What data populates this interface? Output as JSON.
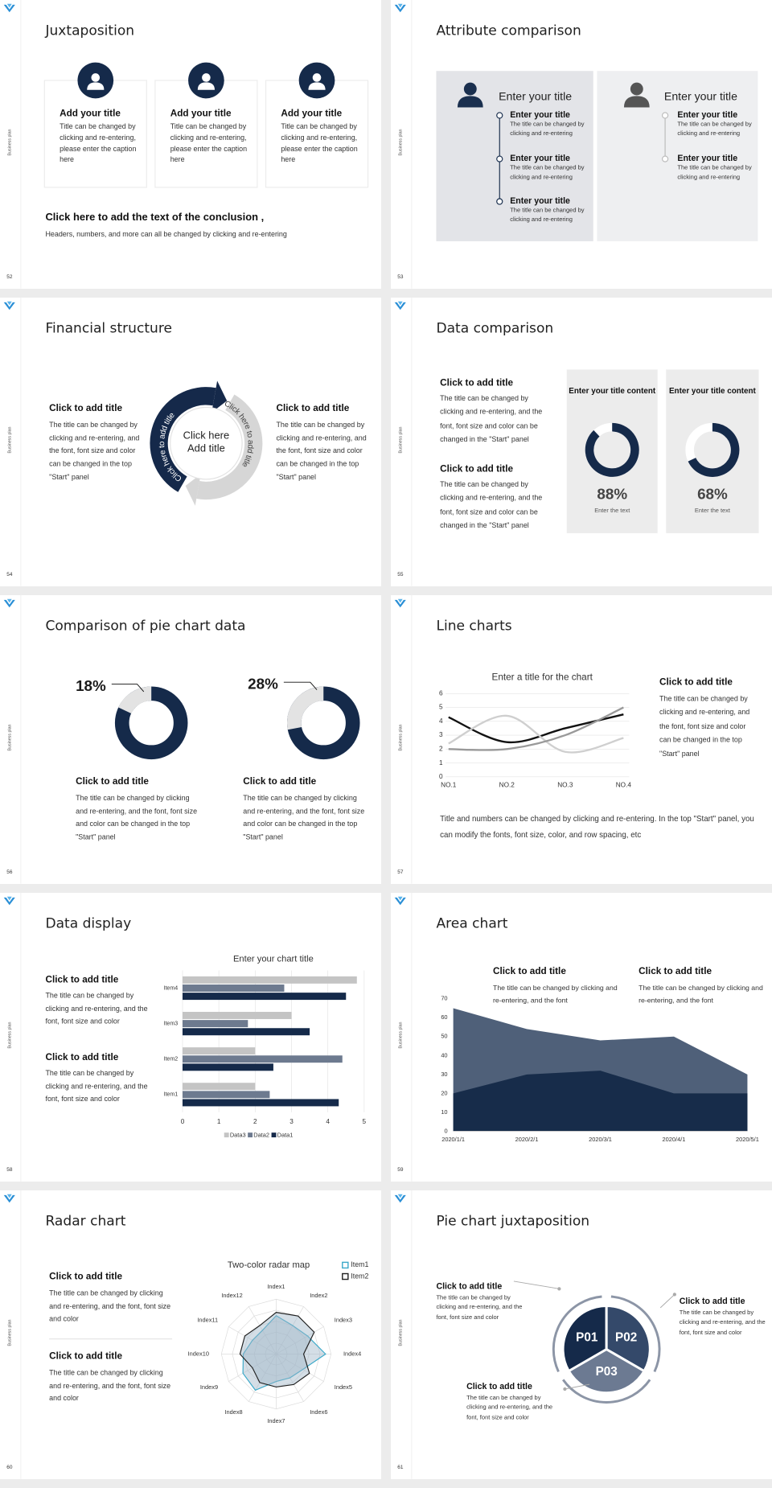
{
  "sidebar_label": "Business plan",
  "slides": [
    {
      "page": 52,
      "title": "Juxtaposition",
      "cards": [
        {
          "title": "Add your title",
          "text": "Title can be changed by clicking and re-entering, please enter the caption here"
        },
        {
          "title": "Add your title",
          "text": "Title can be changed by clicking and re-entering, please enter the caption here"
        },
        {
          "title": "Add your title",
          "text": "Title can be changed by clicking and re-entering, please enter the caption here"
        }
      ],
      "conclusion": {
        "title": "Click here to add the text of the conclusion ,",
        "text": "Headers, numbers, and more can all be changed by clicking and re-entering"
      }
    },
    {
      "page": 53,
      "title": "Attribute comparison",
      "panels": [
        {
          "heading": "Enter your title",
          "items": [
            {
              "title": "Enter your title",
              "text": "The title can be changed by clicking and re-entering"
            },
            {
              "title": "Enter your title",
              "text": "The title can be changed by clicking and re-entering"
            },
            {
              "title": "Enter your title",
              "text": "The title can be changed by clicking and re-entering"
            }
          ]
        },
        {
          "heading": "Enter your title",
          "items": [
            {
              "title": "Enter your title",
              "text": "The title can be changed by clicking and re-entering"
            },
            {
              "title": "Enter your title",
              "text": "The title can be changed by clicking and re-entering"
            }
          ]
        }
      ]
    },
    {
      "page": 54,
      "title": "Financial structure",
      "blocks": [
        {
          "title": "Click to add title",
          "text": "The title can be changed by clicking and re-entering, and the font, font size and color can be changed in the top \"Start\" panel"
        },
        {
          "title": "Click to add title",
          "text": "The title can be changed by clicking and re-entering, and the font, font size and color can be changed in the top \"Start\" panel"
        }
      ],
      "center": "Click here Add title",
      "arc_labels": [
        "Click here to add title",
        "Click here to add title"
      ]
    },
    {
      "page": 55,
      "title": "Data comparison",
      "blocks": [
        {
          "title": "Click to add title",
          "text": "The title can be changed by clicking and re-entering, and the font, font size and color can be changed in the \"Start\" panel"
        },
        {
          "title": "Click to add title",
          "text": "The title can be changed by clicking and re-entering, and the font, font size and color can be changed in the \"Start\" panel"
        }
      ],
      "chart_data": {
        "type": "donut",
        "categories": [
          "Enter your title content",
          "Enter your title content"
        ],
        "values": [
          88,
          68
        ],
        "value_labels": [
          "88%",
          "68%"
        ],
        "captions": [
          "Enter the text",
          "Enter the text"
        ],
        "color": "#152a4a",
        "rest_color": "#ffffff"
      }
    },
    {
      "page": 56,
      "title": "Comparison of pie chart data",
      "blocks": [
        {
          "title": "Click to add title",
          "text": "The title can be changed by clicking and re-entering, and the font, font size and color can be changed in the top \"Start\" panel"
        },
        {
          "title": "Click to add title",
          "text": "The title can be changed by clicking and re-entering, and the font, font size and color can be changed in the top \"Start\" panel"
        }
      ],
      "chart_data": {
        "type": "donut",
        "values": [
          18,
          28
        ],
        "value_labels": [
          "18%",
          "28%"
        ],
        "color": "#e3e3e3",
        "rest_color": "#152a4a"
      }
    },
    {
      "page": 57,
      "title": "Line charts",
      "chart_data": {
        "type": "line",
        "title": "Enter a title for the chart",
        "categories": [
          "NO.1",
          "NO.2",
          "NO.3",
          "NO.4"
        ],
        "series": [
          {
            "color": "#111111",
            "values": [
              4.3,
              2.5,
              3.5,
              4.5
            ]
          },
          {
            "color": "#cfcfcf",
            "values": [
              2.4,
              4.4,
              1.8,
              2.8
            ]
          },
          {
            "color": "#999999",
            "values": [
              2.0,
              2.0,
              3.0,
              5.0
            ]
          }
        ],
        "ylim": [
          0,
          6
        ],
        "yticks": [
          0,
          1,
          2,
          3,
          4,
          5,
          6
        ],
        "grid": true,
        "smooth": true
      },
      "block": {
        "title": "Click to add title",
        "text": "The title can be changed by clicking and re-entering, and the font, font size and color can be changed in the top \"Start\" panel"
      },
      "note": "Title and numbers can be changed by clicking and re-entering. In the top \"Start\" panel, you can modify the fonts, font size, color, and row spacing, etc"
    },
    {
      "page": 58,
      "title": "Data display",
      "blocks": [
        {
          "title": "Click to add title",
          "text": "The title can be changed by clicking and re-entering, and the font, font size and color"
        },
        {
          "title": "Click to add title",
          "text": "The title can be changed by clicking and re-entering, and the font, font size and color"
        }
      ],
      "chart_data": {
        "type": "hbar",
        "title": "Enter your chart title",
        "categories": [
          "Item1",
          "Item2",
          "Item3",
          "Item4"
        ],
        "series": [
          {
            "name": "Data1",
            "color": "#152a4a",
            "values": [
              4.3,
              2.5,
              3.5,
              4.5
            ]
          },
          {
            "name": "Data2",
            "color": "#6d7a8f",
            "values": [
              2.4,
              4.4,
              1.8,
              2.8
            ]
          },
          {
            "name": "Data3",
            "color": "#c4c4c4",
            "values": [
              2.0,
              2.0,
              3.0,
              4.8
            ]
          }
        ],
        "xlim": [
          0,
          5
        ],
        "xticks": [
          0,
          1,
          2,
          3,
          4,
          5
        ],
        "grid": true,
        "legend": "bottom"
      }
    },
    {
      "page": 59,
      "title": "Area chart",
      "blocks": [
        {
          "title": "Click to add title",
          "text": "The title can be changed by clicking and re-entering, and the font"
        },
        {
          "title": "Click to add title",
          "text": "The title can be changed by clicking and re-entering, and the font"
        }
      ],
      "chart_data": {
        "type": "area",
        "x": [
          "2020/1/1",
          "2020/2/1",
          "2020/3/1",
          "2020/4/1",
          "2020/5/1"
        ],
        "series": [
          {
            "color": "#4f6079",
            "values": [
              65,
              54,
              48,
              50,
              30
            ]
          },
          {
            "color": "#172c4a",
            "values": [
              20,
              30,
              32,
              20,
              20
            ]
          }
        ],
        "ylim": [
          0,
          70
        ],
        "yticks": [
          0,
          10,
          20,
          30,
          40,
          50,
          60,
          70
        ]
      }
    },
    {
      "page": 60,
      "title": "Radar chart",
      "blocks": [
        {
          "title": "Click to add title",
          "text": "The title can be changed by clicking and re-entering, and the font, font size and color"
        },
        {
          "title": "Click to add title",
          "text": "The title can be changed by clicking and re-entering, and the font, font size and color"
        }
      ],
      "chart_data": {
        "type": "radar",
        "title": "Two-color radar map",
        "categories": [
          "Index1",
          "Index2",
          "Index3",
          "Index4",
          "Index5",
          "Index6",
          "Index7",
          "Index8",
          "Index9",
          "Index10",
          "Index11",
          "Index12"
        ],
        "series": [
          {
            "name": "Item1",
            "color": "#3ba9c9",
            "values": [
              3.5,
              3.0,
              3.3,
              4.5,
              2.8,
              2.5,
              2.5,
              3.8,
              3.5,
              3.0,
              2.5,
              2.5
            ]
          },
          {
            "name": "Item2",
            "color": "#222222",
            "values": [
              3.8,
              4.0,
              4.0,
              2.5,
              3.5,
              3.2,
              3.0,
              3.0,
              2.5,
              3.3,
              3.3,
              3.0
            ]
          }
        ],
        "rlim": [
          0,
          5
        ],
        "rticks": [
          1,
          2,
          3,
          4,
          5
        ],
        "area_fill": "#9fb6c8",
        "legend": "top-right"
      }
    },
    {
      "page": 61,
      "title": "Pie chart juxtaposition",
      "segments": [
        "P01",
        "P02",
        "P03"
      ],
      "blocks": [
        {
          "title": "Click to add title",
          "text": "The title can be changed by clicking and re-entering, and the font, font size and color"
        },
        {
          "title": "Click to add title",
          "text": "The title can be changed by clicking and re-entering, and the font, font size and color"
        },
        {
          "title": "Click to add title",
          "text": "The title can be changed by clicking and re-entering, and the font, font size and color"
        }
      ]
    }
  ]
}
